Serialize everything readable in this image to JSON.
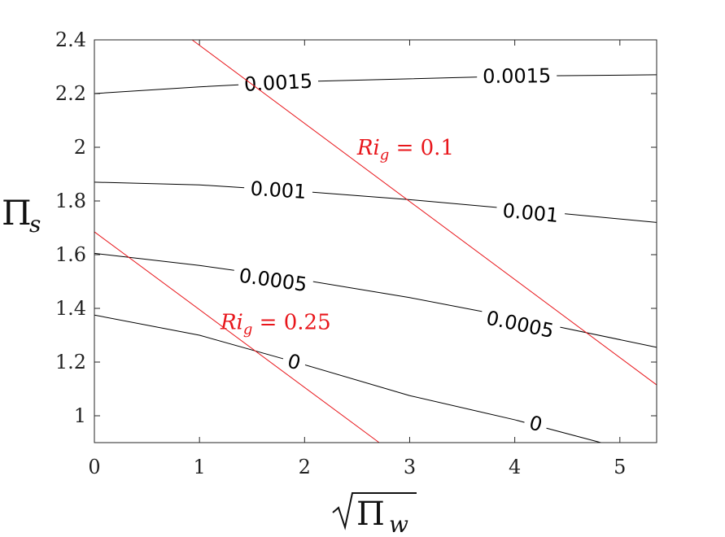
{
  "chart_data": {
    "type": "line",
    "xlabel": "√Π_w",
    "ylabel": "Π_s",
    "xlim": [
      0,
      5.35
    ],
    "ylim": [
      0.9,
      2.4
    ],
    "grid": false,
    "legend": "none",
    "x_ticks": [
      0,
      1,
      2,
      3,
      4,
      5
    ],
    "x_tick_labels": [
      "0",
      "1",
      "2",
      "3",
      "4",
      "5"
    ],
    "y_ticks": [
      1,
      1.2,
      1.4,
      1.6,
      1.8,
      2,
      2.2,
      2.4
    ],
    "y_tick_labels": [
      "1",
      "1.2",
      "1.4",
      "1.6",
      "1.8",
      "2",
      "2.2",
      "2.4"
    ],
    "contours": [
      {
        "level": "0.0015",
        "color": "#000000",
        "x": [
          0,
          1.0,
          2.0,
          3.0,
          4.0,
          5.35
        ],
        "y": [
          2.2,
          2.225,
          2.245,
          2.255,
          2.265,
          2.27
        ],
        "labels": [
          {
            "text": "0.0015",
            "x": 1.75,
            "y": 2.24
          },
          {
            "text": "0.0015",
            "x": 4.02,
            "y": 2.265
          }
        ]
      },
      {
        "level": "0.001",
        "color": "#000000",
        "x": [
          0,
          1.0,
          2.0,
          3.0,
          4.0,
          5.35
        ],
        "y": [
          1.87,
          1.86,
          1.835,
          1.805,
          1.77,
          1.72
        ],
        "labels": [
          {
            "text": "0.001",
            "x": 1.75,
            "y": 1.84
          },
          {
            "text": "0.001",
            "x": 4.15,
            "y": 1.755
          }
        ]
      },
      {
        "level": "0.0005",
        "color": "#000000",
        "x": [
          0,
          1.0,
          2.0,
          3.0,
          4.0,
          5.35
        ],
        "y": [
          1.605,
          1.56,
          1.505,
          1.44,
          1.365,
          1.255
        ],
        "labels": [
          {
            "text": "0.0005",
            "x": 1.7,
            "y": 1.505
          },
          {
            "text": "0.0005",
            "x": 4.05,
            "y": 1.34
          }
        ]
      },
      {
        "level": "0",
        "color": "#000000",
        "x": [
          0,
          1.0,
          2.0,
          3.0,
          4.0,
          4.82
        ],
        "y": [
          1.375,
          1.3,
          1.19,
          1.075,
          0.985,
          0.9
        ],
        "labels": [
          {
            "text": "0",
            "x": 1.9,
            "y": 1.2
          },
          {
            "text": "0",
            "x": 4.2,
            "y": 0.97
          }
        ]
      }
    ],
    "ri_lines": [
      {
        "label": "Ri_g = 0.1",
        "color": "#e8161b",
        "x": [
          0.93,
          5.35
        ],
        "y": [
          2.4,
          1.115
        ],
        "label_pos": {
          "x": 2.5,
          "y": 2.0
        }
      },
      {
        "label": "Ri_g = 0.25",
        "color": "#e8161b",
        "x": [
          0,
          2.71
        ],
        "y": [
          1.685,
          0.9
        ],
        "label_pos": {
          "x": 1.2,
          "y": 1.35
        }
      }
    ]
  }
}
